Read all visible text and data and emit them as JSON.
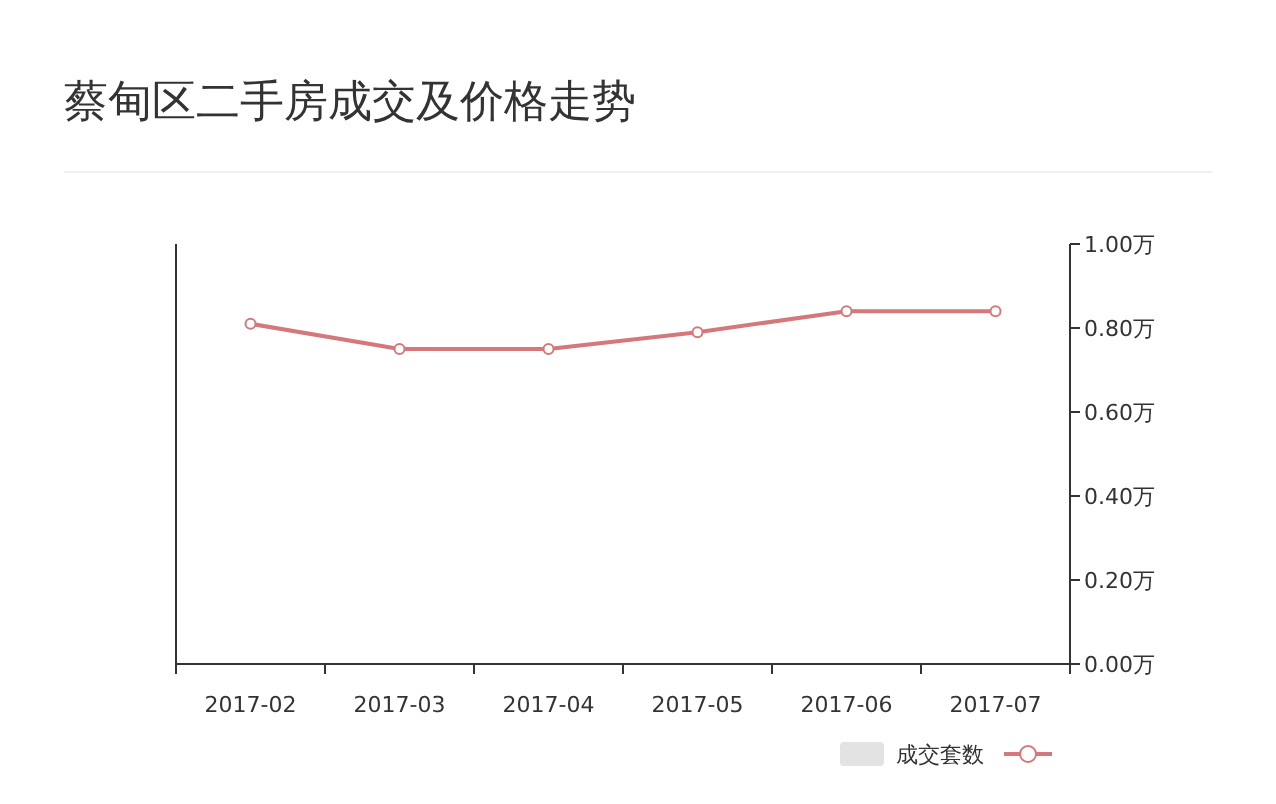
{
  "chart_data": {
    "type": "line",
    "title": "蔡甸区二手房成交及价格走势",
    "categories": [
      "2017-02",
      "2017-03",
      "2017-04",
      "2017-05",
      "2017-06",
      "2017-07"
    ],
    "series": [
      {
        "name": "成交套数",
        "type": "bar",
        "color": "#e3e3e3",
        "values": [
          null,
          null,
          null,
          null,
          null,
          null
        ]
      },
      {
        "axis": "y2",
        "color": "#d4787b",
        "values": [
          0.81,
          0.75,
          0.75,
          0.79,
          0.84,
          0.84
        ]
      }
    ],
    "y2lim": [
      0,
      1
    ],
    "y2ticks": [
      {
        "value": 0,
        "label": "0.00万"
      },
      {
        "value": 0.2,
        "label": "0.20万"
      },
      {
        "value": 0.4,
        "label": "0.40万"
      },
      {
        "value": 0.6,
        "label": "0.60万"
      },
      {
        "value": 0.8,
        "label": "0.80万"
      },
      {
        "value": 1,
        "label": "1.00万"
      }
    ],
    "marker": "circle",
    "line_style": "solid",
    "legend": "bottom right",
    "grid": false
  }
}
